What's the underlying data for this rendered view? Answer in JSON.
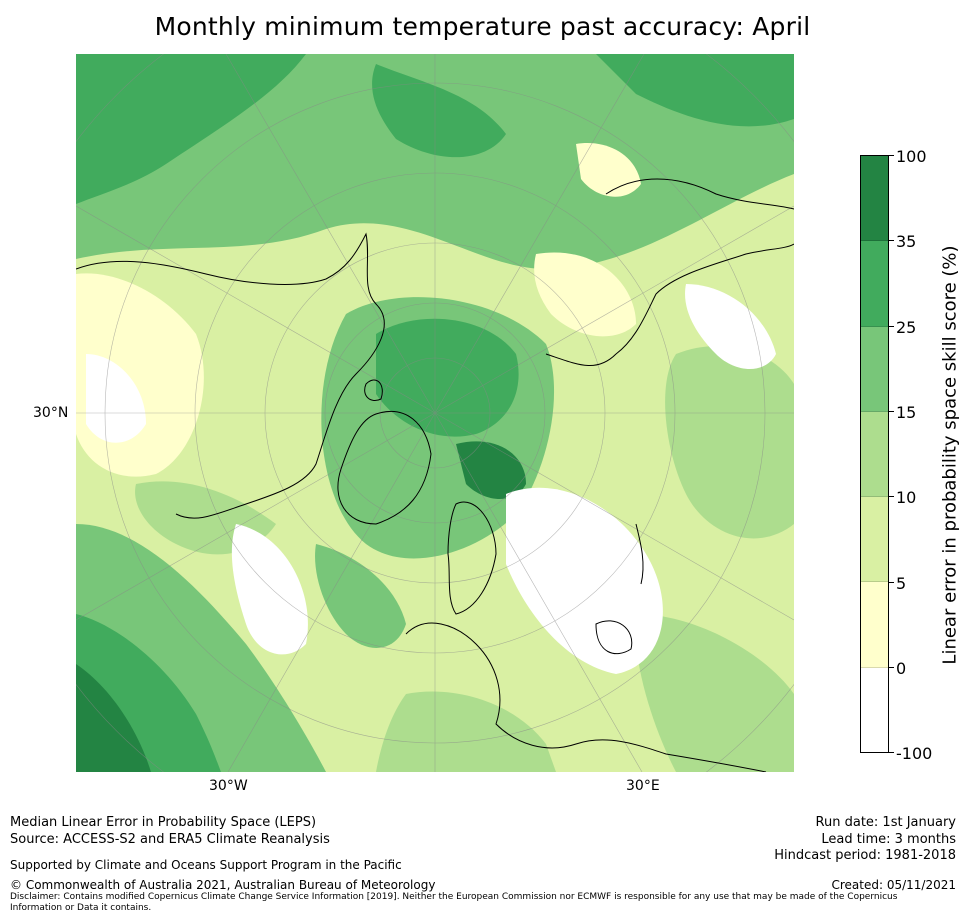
{
  "title": "Monthly minimum temperature past accuracy: April",
  "map": {
    "projection": "North Polar Stereographic",
    "lat_label": "30°N",
    "lon_labels": [
      "30°W",
      "30°E"
    ]
  },
  "colorbar": {
    "title": "Linear error in probability space skill score (%)",
    "ticks": [
      "100",
      "35",
      "25",
      "15",
      "10",
      "5",
      "0",
      "-100"
    ],
    "colors": [
      "#238443",
      "#41ab5d",
      "#78c679",
      "#addd8e",
      "#d9f0a3",
      "#ffffcc",
      "#ffffff"
    ]
  },
  "footer": {
    "line1": "Median Linear Error in Probability Space (LEPS)",
    "line2": "Source: ACCESS-S2 and ERA5 Climate Reanalysis",
    "support": "Supported by Climate and Oceans Support Program in the Pacific",
    "copyright": "© Commonwealth of Australia 2021, Australian Bureau of Meteorology",
    "disclaimer1": "Disclaimer: Contains modified Copernicus Climate Change Service Information [2019]. Neither the European Commission nor ECMWF is responsible for any use that may be made of the Copernicus",
    "disclaimer2": "Information or Data it contains.",
    "run_date": "Run date: 1st January",
    "lead_time": "Lead time: 3 months",
    "hindcast": "Hindcast period: 1981-2018",
    "created": "Created: 05/11/2021"
  }
}
